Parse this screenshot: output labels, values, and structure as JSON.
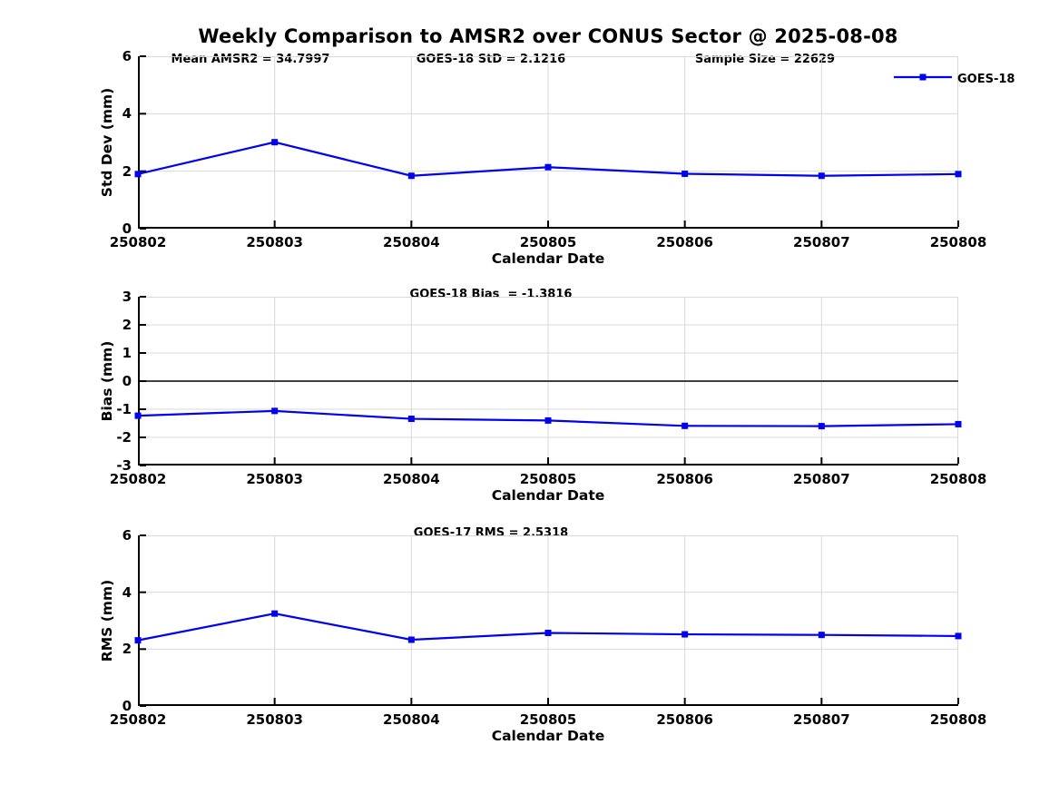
{
  "figure": {
    "title": "Weekly Comparison to AMSR2 over CONUS Sector @ 2025-08-08",
    "legend": {
      "label": "GOES-18"
    },
    "colors": {
      "line": "#0000EE",
      "grid": "#D9D9D9",
      "axis": "#000000",
      "zero_line": "#404040",
      "background": "#FFFFFF"
    }
  },
  "chart_data": [
    {
      "type": "line",
      "panel": "std_dev",
      "annotations": [
        "Mean AMSR2 = 34.7997",
        "GOES-18 StD = 2.1216",
        "Sample Size = 22629"
      ],
      "categories": [
        "250802",
        "250803",
        "250804",
        "250805",
        "250806",
        "250807",
        "250808"
      ],
      "series": [
        {
          "name": "GOES-18",
          "values": [
            1.9,
            3.01,
            1.84,
            2.14,
            1.91,
            1.84,
            1.9
          ]
        }
      ],
      "xlabel": "Calendar Date",
      "ylabel": "Std Dev (mm)",
      "ylim": [
        0,
        6
      ],
      "yticks": [
        0,
        2,
        4,
        6
      ],
      "grid": true,
      "zero_line": false,
      "legend_position": "top-right-outside",
      "marker": "square"
    },
    {
      "type": "line",
      "panel": "bias",
      "annotations": [
        "GOES-18 Bias  = -1.3816"
      ],
      "categories": [
        "250802",
        "250803",
        "250804",
        "250805",
        "250806",
        "250807",
        "250808"
      ],
      "series": [
        {
          "name": "GOES-18",
          "values": [
            -1.23,
            -1.06,
            -1.34,
            -1.4,
            -1.59,
            -1.6,
            -1.53
          ]
        }
      ],
      "xlabel": "Calendar Date",
      "ylabel": "Bias (mm)",
      "ylim": [
        -3,
        3
      ],
      "yticks": [
        -3,
        -2,
        -1,
        0,
        1,
        2,
        3
      ],
      "grid": true,
      "zero_line": true,
      "marker": "square"
    },
    {
      "type": "line",
      "panel": "rms",
      "annotations": [
        "GOES-17 RMS = 2.5318"
      ],
      "categories": [
        "250802",
        "250803",
        "250804",
        "250805",
        "250806",
        "250807",
        "250808"
      ],
      "series": [
        {
          "name": "GOES-18",
          "values": [
            2.31,
            3.25,
            2.33,
            2.57,
            2.52,
            2.5,
            2.46
          ]
        }
      ],
      "xlabel": "Calendar Date",
      "ylabel": "RMS (mm)",
      "ylim": [
        0,
        6
      ],
      "yticks": [
        0,
        2,
        4,
        6
      ],
      "grid": true,
      "zero_line": false,
      "marker": "square"
    }
  ]
}
